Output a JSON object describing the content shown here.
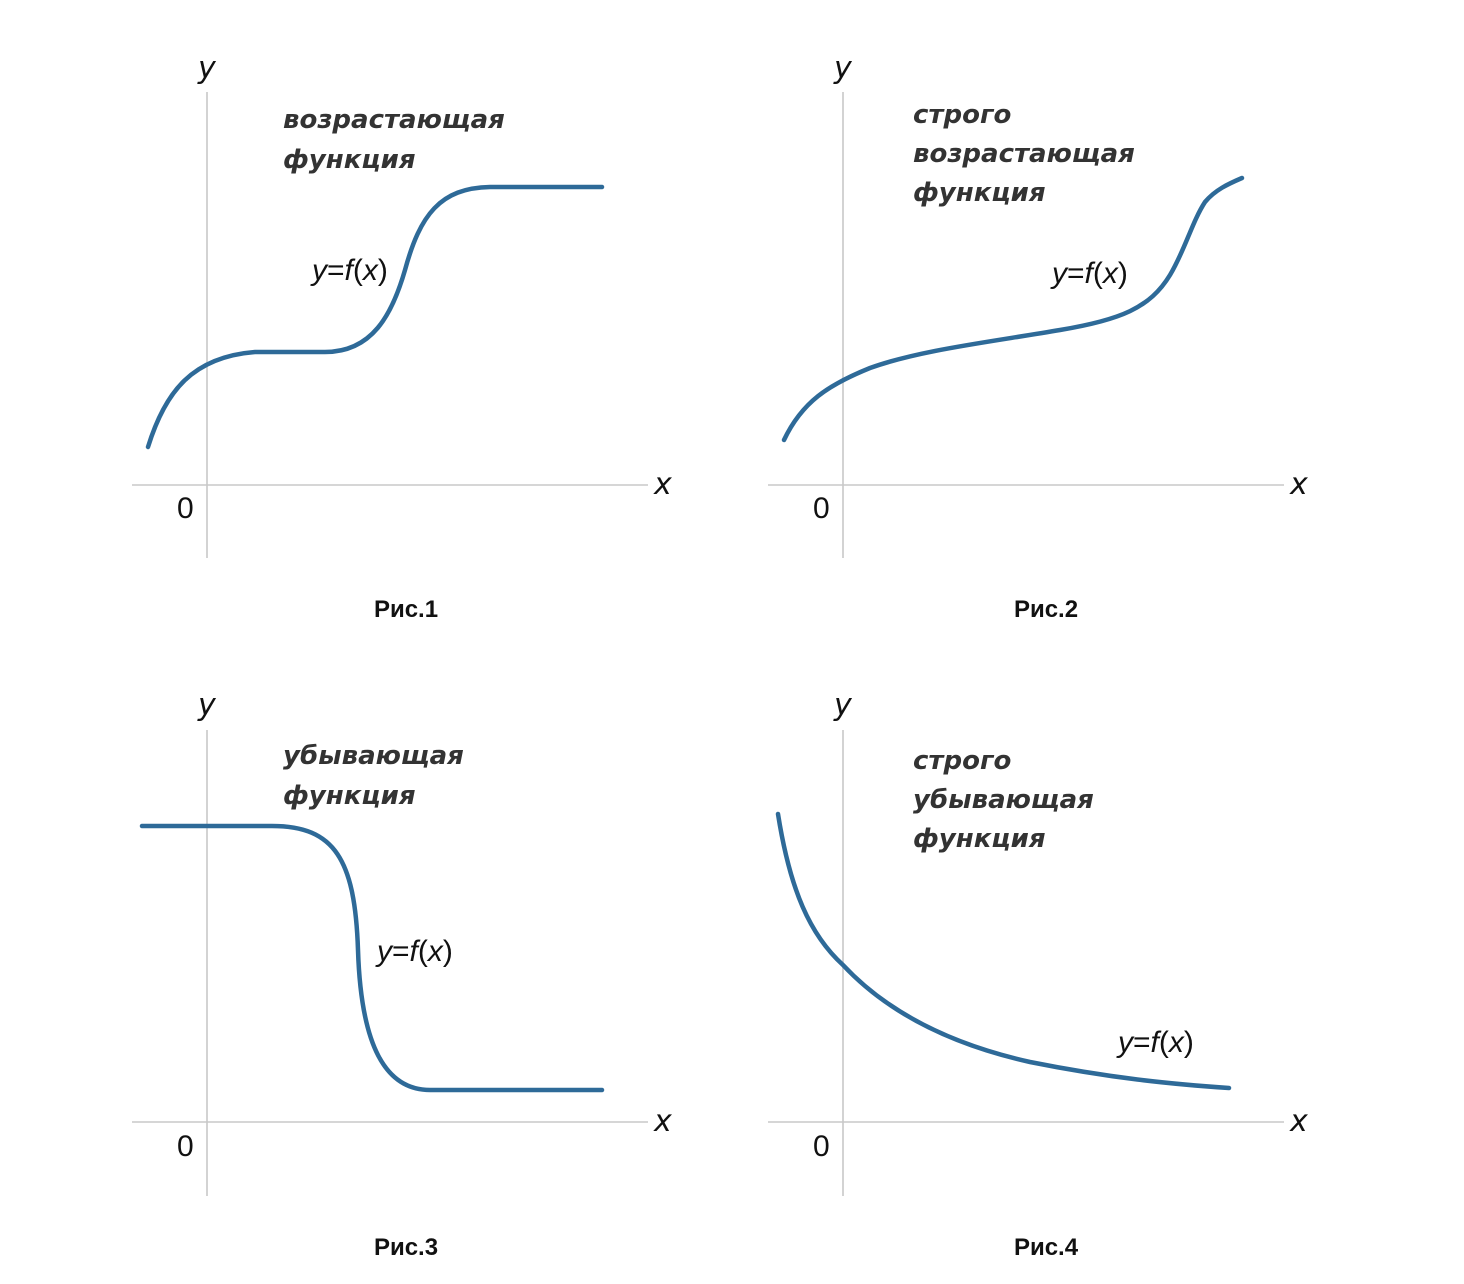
{
  "panels": [
    {
      "id": "1",
      "caption": "Рис.1",
      "description": [
        "возрастающая",
        "функция"
      ],
      "function_label": {
        "y": "y",
        "eq": "=",
        "f": "f",
        "lp": "(",
        "x": "x",
        "rp": ")"
      },
      "axis_x": "x",
      "axis_y": "y",
      "origin": "0"
    },
    {
      "id": "2",
      "caption": "Рис.2",
      "description": [
        "строго",
        "возрастающая",
        "функция"
      ],
      "function_label": {
        "y": "y",
        "eq": "=",
        "f": "f",
        "lp": "(",
        "x": "x",
        "rp": ")"
      },
      "axis_x": "x",
      "axis_y": "y",
      "origin": "0"
    },
    {
      "id": "3",
      "caption": "Рис.3",
      "description": [
        "убывающая",
        "функция"
      ],
      "function_label": {
        "y": "y",
        "eq": "=",
        "f": "f",
        "lp": "(",
        "x": "x",
        "rp": ")"
      },
      "axis_x": "x",
      "axis_y": "y",
      "origin": "0"
    },
    {
      "id": "4",
      "caption": "Рис.4",
      "description": [
        "строго",
        "убывающая",
        "функция"
      ],
      "function_label": {
        "y": "y",
        "eq": "=",
        "f": "f",
        "lp": "(",
        "x": "x",
        "rp": ")"
      },
      "axis_x": "x",
      "axis_y": "y",
      "origin": "0"
    }
  ],
  "colors": {
    "curve": "#2e6a98",
    "axis": "#c8c8c8"
  }
}
